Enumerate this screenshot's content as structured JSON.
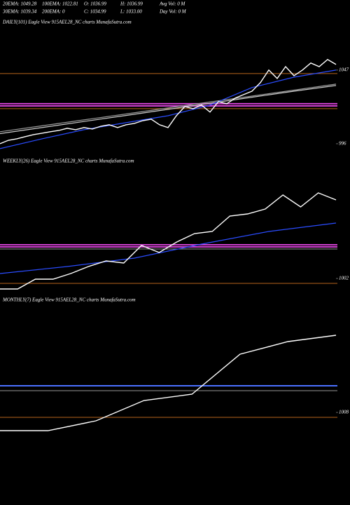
{
  "header": {
    "lines": [
      [
        "20EMA: 1049.28",
        "100EMA: 1022.81",
        "O: 1036.99",
        "H: 1036.99",
        "Avg Vol: 0  M"
      ],
      [
        "30EMA: 1039.34",
        "200EMA: 0",
        "C: 1034.99",
        "L: 1033.00",
        "Day Vol: 0  M"
      ]
    ]
  },
  "chart_data": [
    {
      "type": "line",
      "title": "DAILY(101) Eagle  View  915AEL28_NC charts MunafaSutra.com",
      "ylim": [
        991.1,
        1076.1
      ],
      "yticks": [
        1047,
        996
      ],
      "hlines": [
        {
          "value": 1044.6,
          "color": "#b8651b"
        },
        {
          "value": 1023.7,
          "color": "#d040d0"
        },
        {
          "value": 1022.2,
          "color": "#d040d0"
        },
        {
          "value": 1020.3,
          "color": "#b8651b"
        }
      ],
      "series": [
        {
          "color": "#999999",
          "values": [
            1004.3,
            1008.4,
            1012.5,
            1016.6,
            1020.8,
            1024.9,
            1029.0,
            1033.1,
            1037.3
          ]
        },
        {
          "color": "#cccccc",
          "values": [
            1003.0,
            1007.2,
            1011.4,
            1015.6,
            1019.8,
            1024.0,
            1028.2,
            1032.4,
            1036.3
          ]
        },
        {
          "color": "#2a4cff",
          "values": [
            992.6,
            999.4,
            1005.7,
            1010.6,
            1015.4,
            1022.7,
            1034.9,
            1042.1,
            1047.0
          ]
        },
        {
          "color": "#ffffff",
          "values": [
            996.0,
            998.4,
            999.4,
            1000.9,
            1002.3,
            1003.3,
            1004.3,
            1005.2,
            1006.7,
            1005.7,
            1007.2,
            1006.2,
            1008.1,
            1009.1,
            1007.2,
            1009.1,
            1010.1,
            1012.0,
            1013.0,
            1009.1,
            1007.2,
            1015.4,
            1021.7,
            1020.3,
            1022.7,
            1017.9,
            1025.1,
            1023.7,
            1027.6,
            1030.0,
            1032.4,
            1038.3,
            1047.0,
            1041.2,
            1049.4,
            1043.1,
            1047.0,
            1051.9,
            1049.4,
            1054.3,
            1050.9
          ]
        }
      ]
    },
    {
      "type": "line",
      "title": "WEEKLY(26) Eagle  View  915AEL28_NC charts MunafaSutra.com",
      "ylim": [
        1000,
        1041.25
      ],
      "yticks": [
        1002
      ],
      "hlines": [
        {
          "value": 1014,
          "color": "#d040d0"
        },
        {
          "value": 1013.25,
          "color": "#d040d0"
        },
        {
          "value": 1012.5,
          "color": "#999999"
        },
        {
          "value": 1000.25,
          "color": "#b8651b"
        }
      ],
      "series": [
        {
          "color": "#2a4cff",
          "values": [
            1003.75,
            1006.25,
            1009.25,
            1014.25,
            1018.75,
            1021.75
          ]
        },
        {
          "color": "#ffffff",
          "values": [
            998.25,
            998.25,
            1001.75,
            1001.75,
            1003.75,
            1006.25,
            1008.25,
            1007.5,
            1013.75,
            1011.25,
            1015,
            1018,
            1018.75,
            1024.25,
            1025,
            1026.75,
            1031.75,
            1027.5,
            1032.5,
            1030
          ]
        }
      ]
    },
    {
      "type": "line",
      "title": "MONTHLY(7) Eagle  View  915AEL28_NC charts MunafaSutra.com",
      "ylim": [
        981.6,
        1038.6
      ],
      "yticks": [
        1008
      ],
      "hlines": [
        {
          "value": 1015.6,
          "color": "#4a70ff"
        },
        {
          "value": 1014.2,
          "color": "#999999"
        },
        {
          "value": 1006.6,
          "color": "#b8651b"
        }
      ],
      "series": [
        {
          "color": "#ffffff",
          "values": [
            1002.8,
            1002.8,
            1005.6,
            1011.4,
            1013.2,
            1024.6,
            1028.2,
            1030
          ]
        }
      ]
    }
  ]
}
